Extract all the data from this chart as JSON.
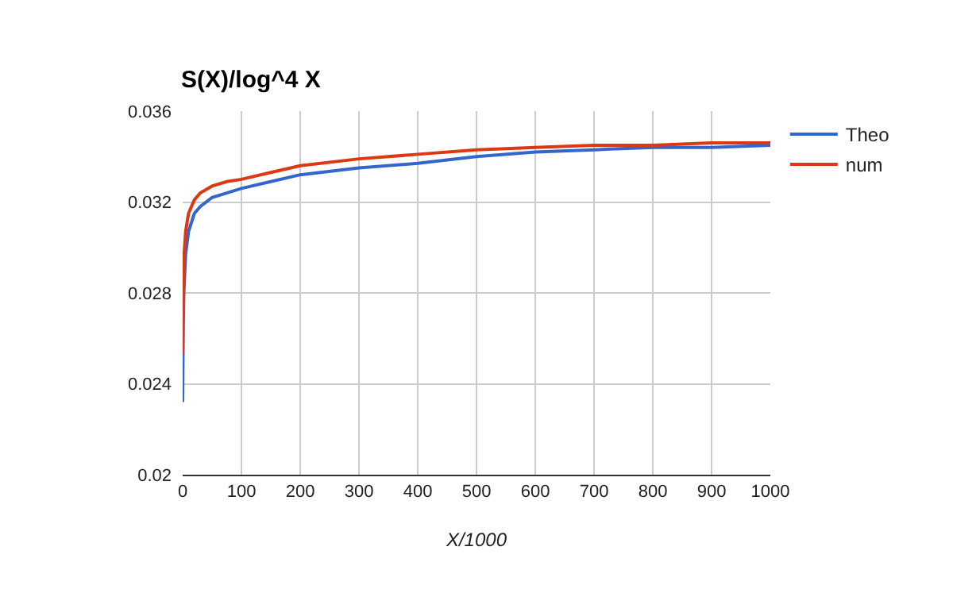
{
  "chart_data": {
    "type": "line",
    "title": "S(X)/log^4 X",
    "xlabel": "X/1000",
    "x": [
      0,
      1,
      2,
      5,
      10,
      20,
      30,
      50,
      75,
      100,
      150,
      200,
      300,
      400,
      500,
      600,
      700,
      800,
      900,
      1000
    ],
    "series": [
      {
        "name": "Theo",
        "color": "#3366cc",
        "values": [
          0.0232,
          0.0265,
          0.028,
          0.0297,
          0.0307,
          0.0315,
          0.0318,
          0.0322,
          0.0324,
          0.0326,
          0.0329,
          0.0332,
          0.0335,
          0.0337,
          0.034,
          0.0342,
          0.0343,
          0.0344,
          0.0344,
          0.0345
        ]
      },
      {
        "name": "num",
        "color": "#dc3912",
        "values": [
          0.0253,
          0.0283,
          0.0295,
          0.0307,
          0.0315,
          0.0321,
          0.0324,
          0.0327,
          0.0329,
          0.033,
          0.0333,
          0.0336,
          0.0339,
          0.0341,
          0.0343,
          0.0344,
          0.0345,
          0.0345,
          0.0346,
          0.0346
        ]
      }
    ],
    "xlim": [
      0,
      1000
    ],
    "xticks": [
      0,
      100,
      200,
      300,
      400,
      500,
      600,
      700,
      800,
      900,
      1000
    ],
    "ylim": [
      0.02,
      0.036
    ],
    "yticks": [
      0.02,
      0.024,
      0.028,
      0.032,
      0.036
    ],
    "grid": true,
    "legend": "top right",
    "marker": "none",
    "line_style": "solid"
  }
}
